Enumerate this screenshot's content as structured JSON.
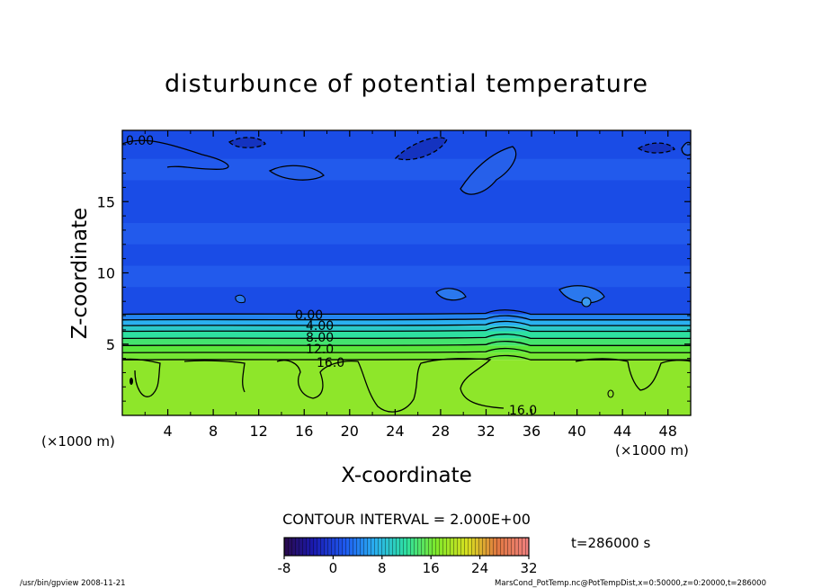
{
  "chart_data": {
    "type": "heatmap",
    "title": "disturbunce of potential temperature",
    "xlabel": "X-coordinate",
    "ylabel": "Z-coordinate",
    "x_unit_left": "(×1000 m)",
    "x_unit_right": "(×1000 m)",
    "xlim": [
      0,
      50
    ],
    "ylim": [
      0,
      20
    ],
    "xticks": [
      4,
      8,
      12,
      16,
      20,
      24,
      28,
      32,
      36,
      40,
      44,
      48
    ],
    "yticks": [
      5,
      10,
      15
    ],
    "contour_labels": [
      "0.00",
      "0.00",
      "4.00",
      "8.00",
      "12.0",
      "16.0",
      "16.0"
    ],
    "contour_interval_label": "CONTOUR INTERVAL = 2.000E+00",
    "time_label": "t=286000 s",
    "colorbar": {
      "min": -8,
      "max": 32,
      "ticks": [
        "-8",
        "0",
        "8",
        "16",
        "24",
        "32"
      ]
    },
    "layers": [
      {
        "z_bottom": 0.0,
        "z_top": 3.9,
        "value": 16
      },
      {
        "z_bottom": 3.9,
        "z_top": 4.4,
        "value": 14
      },
      {
        "z_bottom": 4.4,
        "z_top": 4.9,
        "value": 12
      },
      {
        "z_bottom": 4.9,
        "z_top": 5.4,
        "value": 10
      },
      {
        "z_bottom": 5.4,
        "z_top": 5.9,
        "value": 8
      },
      {
        "z_bottom": 5.9,
        "z_top": 6.3,
        "value": 6
      },
      {
        "z_bottom": 6.3,
        "z_top": 6.7,
        "value": 4
      },
      {
        "z_bottom": 6.7,
        "z_top": 7.1,
        "value": 2
      },
      {
        "z_bottom": 7.1,
        "z_top": 20.0,
        "value": 0
      }
    ]
  },
  "footer": {
    "program": "/usr/bin/gpview   2008-11-21",
    "source": "MarsCond_PotTemp.nc@PotTempDist,x=0:50000,z=0:20000,t=286000"
  },
  "colors": {
    "background": "#ffffff",
    "contour": "#000000",
    "upper_field": "#1a4ce6",
    "lower_field": "#8ee62a"
  }
}
